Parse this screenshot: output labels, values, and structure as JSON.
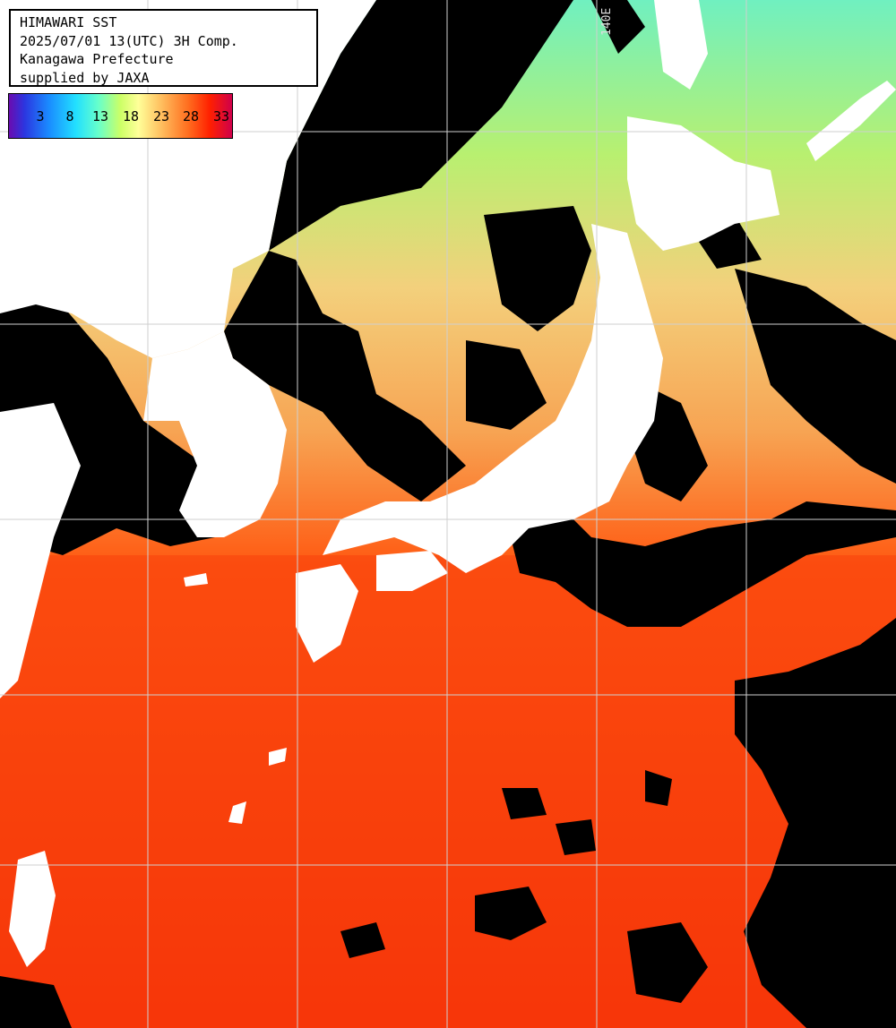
{
  "header": {
    "line1": "HIMAWARI SST",
    "line2": "2025/07/01 13(UTC) 3H Comp.",
    "line3": "Kanagawa Prefecture",
    "line4": "supplied by JAXA"
  },
  "colorbar": {
    "ticks": [
      "3",
      "8",
      "13",
      "18",
      "23",
      "28",
      "33"
    ]
  },
  "grid": {
    "lon_label": "140E"
  },
  "colors": {
    "land": "#ffffff",
    "cloud": "#000000",
    "gridline": "#cfcfcf",
    "warm": "#ff4a0a",
    "hot": "#f52a05",
    "mild": "#f5c070",
    "cool": "#a8f07a",
    "cold": "#60f0c8"
  }
}
